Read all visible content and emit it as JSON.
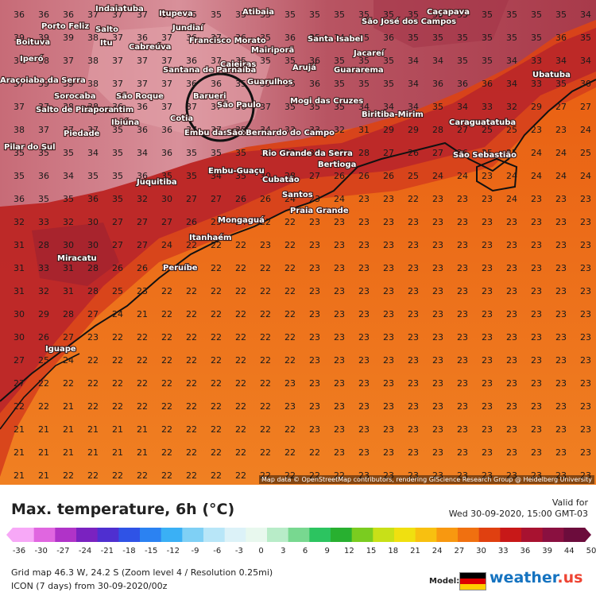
{
  "title": "Max. temperature, 6h (°C)",
  "valid": {
    "label": "Valid for",
    "value": "Wed 30-09-2020, 15:00 GMT-03"
  },
  "grid_info": "Grid map 46.3 W, 24.2 S (Zoom level 4 / Resolution 0.25mi)",
  "model_info": "ICON (7 days) from  30-09-2020/00z",
  "model_label": "Model:",
  "brand": {
    "text": "weather.us",
    "part1": "weather",
    "part2": ".us"
  },
  "attribution": "Map data © OpenStreetMap contributors, rendering GIScience Research Group @ Heidelberg University",
  "legend_ticks": [
    "-36",
    "-30",
    "-27",
    "-24",
    "-21",
    "-18",
    "-15",
    "-12",
    "-9",
    "-6",
    "-3",
    "0",
    "3",
    "6",
    "9",
    "12",
    "15",
    "18",
    "21",
    "24",
    "27",
    "30",
    "33",
    "36",
    "39",
    "44",
    "50"
  ],
  "colors": {
    "hot_land": "#a33a48",
    "mid": "#c0342a",
    "sea": "#ef6a10",
    "sea_light": "#f0761e"
  },
  "cities": [
    "Indaiatuba",
    "Itupeva",
    "Atibaia",
    "Caçapava",
    "Porto Feliz",
    "Salto",
    "Jundiaí",
    "São José dos Campos",
    "Boituva",
    "Itu",
    "Cabreúva",
    "Francisco Morato",
    "Mairiporã",
    "Santa Isabel",
    "Jacareí",
    "Iperó",
    "Caieiras",
    "Santana de Parnaíba",
    "Arujá",
    "Guararema",
    "Ubatuba",
    "Araçoiaba da Serra",
    "Sorocaba",
    "Barueri",
    "Guarulhos",
    "Votorantim",
    "São Roque",
    "São Paulo",
    "Mogi das Cruzes",
    "Salto de Pirapora",
    "Ibiúna",
    "Cotia",
    "Biritiba-Mirim",
    "Caraguatatuba",
    "Piedade",
    "Embu das Artes",
    "São Bernardo do Campo",
    "Pilar do Sul",
    "Rio Grande da Serra",
    "Bertioga",
    "São Sebastião",
    "Embu-Guaçu",
    "Juquitiba",
    "Cubatão",
    "Santos",
    "Praia Grande",
    "Mongaguá",
    "Itanhaém",
    "Miracatu",
    "Peruíbe",
    "Iguape"
  ],
  "temperature_grid": {
    "rows": [
      [
        "36",
        "36",
        "36",
        "37",
        "37",
        "37",
        "37",
        "35",
        "35",
        "35",
        "35",
        "35",
        "35",
        "35",
        "35",
        "35",
        "35",
        "35",
        "35",
        "35",
        "35",
        "35",
        "35",
        "34"
      ],
      [
        "39",
        "39",
        "39",
        "38",
        "37",
        "36",
        "37",
        "36",
        "37",
        "36",
        "35",
        "36",
        "35",
        "34",
        "35",
        "36",
        "35",
        "35",
        "35",
        "35",
        "35",
        "35",
        "36",
        "35"
      ],
      [
        "37",
        "38",
        "37",
        "38",
        "37",
        "37",
        "37",
        "36",
        "37",
        "35",
        "35",
        "35",
        "36",
        "35",
        "35",
        "35",
        "34",
        "34",
        "35",
        "35",
        "34",
        "33",
        "34",
        "34"
      ],
      [
        "37",
        "39",
        "39",
        "38",
        "37",
        "37",
        "37",
        "36",
        "36",
        "35",
        "35",
        "35",
        "36",
        "35",
        "35",
        "35",
        "34",
        "36",
        "36",
        "36",
        "34",
        "33",
        "35",
        "30"
      ],
      [
        "37",
        "37",
        "38",
        "38",
        "36",
        "36",
        "37",
        "37",
        "37",
        "36",
        "37",
        "35",
        "35",
        "35",
        "34",
        "34",
        "34",
        "35",
        "34",
        "33",
        "32",
        "29",
        "27",
        "27"
      ],
      [
        "38",
        "37",
        "37",
        "37",
        "35",
        "36",
        "36",
        "37",
        "37",
        "35",
        "34",
        "33",
        "33",
        "32",
        "31",
        "29",
        "29",
        "28",
        "27",
        "25",
        "25",
        "23",
        "23",
        "24"
      ],
      [
        "35",
        "35",
        "35",
        "34",
        "35",
        "34",
        "36",
        "35",
        "35",
        "35",
        "33",
        "33",
        "31",
        "30",
        "28",
        "27",
        "26",
        "27",
        "26",
        "25",
        "25",
        "24",
        "24",
        "25"
      ],
      [
        "35",
        "36",
        "34",
        "35",
        "35",
        "36",
        "35",
        "35",
        "34",
        "35",
        "30",
        "28",
        "27",
        "26",
        "26",
        "26",
        "25",
        "24",
        "24",
        "23",
        "24",
        "24",
        "24",
        "24"
      ],
      [
        "36",
        "35",
        "35",
        "36",
        "35",
        "32",
        "30",
        "27",
        "27",
        "26",
        "26",
        "24",
        "23",
        "24",
        "23",
        "23",
        "22",
        "23",
        "23",
        "23",
        "24",
        "23",
        "23",
        "23"
      ],
      [
        "32",
        "33",
        "32",
        "30",
        "27",
        "27",
        "27",
        "26",
        "25",
        "24",
        "22",
        "22",
        "23",
        "23",
        "23",
        "23",
        "23",
        "23",
        "23",
        "23",
        "23",
        "23",
        "23",
        "23"
      ],
      [
        "31",
        "28",
        "30",
        "30",
        "27",
        "27",
        "24",
        "22",
        "22",
        "22",
        "23",
        "22",
        "23",
        "23",
        "23",
        "23",
        "23",
        "23",
        "23",
        "23",
        "23",
        "23",
        "23",
        "23"
      ],
      [
        "31",
        "33",
        "31",
        "28",
        "26",
        "26",
        "23",
        "22",
        "22",
        "22",
        "22",
        "22",
        "23",
        "23",
        "23",
        "23",
        "23",
        "23",
        "23",
        "23",
        "23",
        "23",
        "23",
        "23"
      ],
      [
        "31",
        "32",
        "31",
        "28",
        "25",
        "23",
        "22",
        "22",
        "22",
        "22",
        "22",
        "22",
        "23",
        "23",
        "23",
        "23",
        "23",
        "23",
        "23",
        "23",
        "23",
        "23",
        "23",
        "23"
      ],
      [
        "30",
        "29",
        "28",
        "27",
        "24",
        "21",
        "22",
        "22",
        "22",
        "22",
        "22",
        "22",
        "23",
        "23",
        "23",
        "23",
        "23",
        "23",
        "23",
        "23",
        "23",
        "23",
        "23",
        "23"
      ],
      [
        "30",
        "26",
        "27",
        "23",
        "22",
        "22",
        "22",
        "22",
        "22",
        "22",
        "22",
        "22",
        "23",
        "23",
        "23",
        "23",
        "23",
        "23",
        "23",
        "23",
        "23",
        "23",
        "23",
        "23"
      ],
      [
        "27",
        "25",
        "24",
        "22",
        "22",
        "22",
        "22",
        "22",
        "22",
        "22",
        "22",
        "22",
        "23",
        "23",
        "23",
        "23",
        "23",
        "23",
        "23",
        "23",
        "23",
        "23",
        "23",
        "23"
      ],
      [
        "27",
        "22",
        "22",
        "22",
        "22",
        "22",
        "22",
        "22",
        "22",
        "22",
        "22",
        "23",
        "23",
        "23",
        "23",
        "23",
        "23",
        "23",
        "23",
        "23",
        "23",
        "23",
        "23",
        "23"
      ],
      [
        "22",
        "22",
        "21",
        "22",
        "22",
        "22",
        "22",
        "22",
        "22",
        "22",
        "22",
        "23",
        "23",
        "23",
        "23",
        "23",
        "23",
        "23",
        "23",
        "23",
        "23",
        "23",
        "23",
        "23"
      ],
      [
        "21",
        "21",
        "21",
        "21",
        "21",
        "21",
        "22",
        "22",
        "22",
        "22",
        "22",
        "22",
        "23",
        "23",
        "23",
        "23",
        "23",
        "23",
        "23",
        "23",
        "23",
        "23",
        "23",
        "23"
      ],
      [
        "21",
        "21",
        "21",
        "21",
        "21",
        "21",
        "22",
        "22",
        "22",
        "22",
        "22",
        "22",
        "22",
        "23",
        "23",
        "23",
        "23",
        "23",
        "23",
        "23",
        "23",
        "23",
        "23",
        "23"
      ],
      [
        "21",
        "21",
        "22",
        "22",
        "22",
        "22",
        "22",
        "22",
        "22",
        "22",
        "22",
        "22",
        "22",
        "22",
        "23",
        "23",
        "23",
        "23",
        "23",
        "23",
        "23",
        "23",
        "23",
        "23"
      ]
    ]
  }
}
